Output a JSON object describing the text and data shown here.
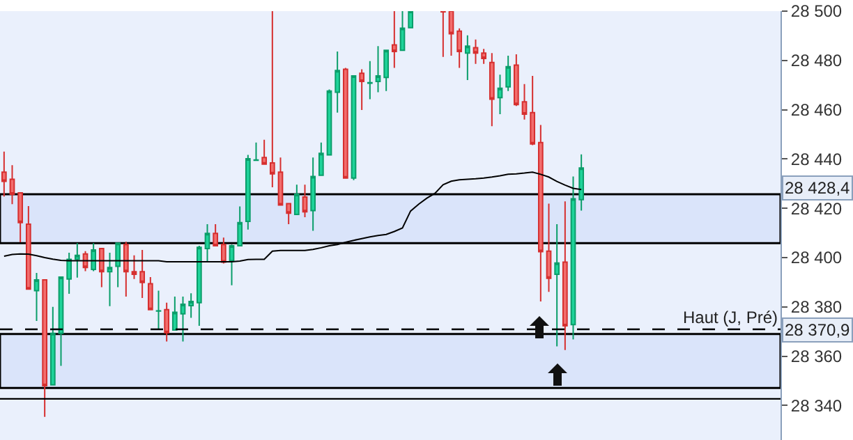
{
  "chart_data": {
    "type": "candlestick",
    "categories": [
      null,
      null,
      null,
      null,
      null,
      null,
      null,
      null,
      null,
      null,
      null,
      null,
      null,
      null,
      null,
      null,
      null,
      null,
      null,
      null,
      null,
      null,
      null,
      null,
      null,
      null,
      null,
      null,
      null,
      null,
      null,
      null,
      null,
      null,
      null,
      null,
      null,
      null,
      null,
      null,
      null,
      null,
      null,
      null,
      null,
      null,
      null,
      null,
      null,
      null,
      null,
      null,
      null,
      null,
      null,
      null,
      null,
      null,
      null,
      null,
      null,
      null,
      null,
      null,
      null,
      null,
      null,
      null,
      null,
      null,
      null,
      null,
      null,
      null,
      null,
      null,
      null,
      null,
      null,
      null,
      null,
      null,
      null,
      null,
      null,
      null,
      null,
      null,
      null,
      null,
      null,
      null,
      null,
      null,
      null,
      null
    ],
    "ohlc": [
      [
        28434.7,
        28443.0,
        28424.8,
        28430.9
      ],
      [
        28431.8,
        28437.5,
        28421.7,
        28425.7
      ],
      [
        28426.3,
        28426.3,
        28406.2,
        28414.2
      ],
      [
        28413.6,
        28420.9,
        28387.2,
        28387.2
      ],
      [
        28386.6,
        28393.8,
        28374.3,
        28391.0
      ],
      [
        28391.0,
        28391.0,
        28335.4,
        28348.0
      ],
      [
        28348.4,
        28380.0,
        28348.4,
        28369.3
      ],
      [
        28369.3,
        28392.1,
        28356.1,
        28392.1
      ],
      [
        28391.3,
        28402.0,
        28385.3,
        28399.3
      ],
      [
        28399.3,
        28405.9,
        28391.9,
        28400.9
      ],
      [
        28401.5,
        28402.6,
        28394.5,
        28396.0
      ],
      [
        28395.2,
        28405.9,
        28394.5,
        28403.1
      ],
      [
        28403.7,
        28403.7,
        28388.0,
        28394.3
      ],
      [
        28394.3,
        28402.0,
        28380.3,
        28396.0
      ],
      [
        28396.5,
        28405.9,
        28388.0,
        28405.9
      ],
      [
        28405.3,
        28406.4,
        28384.2,
        28394.3
      ],
      [
        28394.3,
        28400.9,
        28391.3,
        28393.2
      ],
      [
        28394.3,
        28403.1,
        28383.6,
        28389.9
      ],
      [
        28389.4,
        28392.1,
        28378.9,
        28378.9
      ],
      [
        28378.3,
        28386.6,
        28370.6,
        28378.4
      ],
      [
        28378.9,
        28381.7,
        28366.0,
        28369.5
      ],
      [
        28370.6,
        28384.2,
        28370.6,
        28377.8
      ],
      [
        28377.2,
        28384.2,
        28366.0,
        28381.1
      ],
      [
        28380.5,
        28385.5,
        28375.6,
        28382.2
      ],
      [
        28381.7,
        28404.8,
        28372.3,
        28404.2
      ],
      [
        28403.7,
        28413.6,
        28398.2,
        28409.8
      ],
      [
        28409.8,
        28413.6,
        28404.8,
        28404.8
      ],
      [
        28405.3,
        28408.1,
        28397.6,
        28398.2
      ],
      [
        28398.7,
        28405.3,
        28388.8,
        28404.8
      ],
      [
        28404.8,
        28420.8,
        28404.8,
        28414.2
      ],
      [
        28414.7,
        28441.7,
        28411.4,
        28440.1
      ],
      [
        28439.5,
        28446.7,
        28439.5,
        28439.6
      ],
      [
        28440.6,
        28447.8,
        28437.9,
        28437.9
      ],
      [
        28438.4,
        28500,
        28428.5,
        28434.0
      ],
      [
        28434.7,
        28440.6,
        28421.3,
        28421.3
      ],
      [
        28421.9,
        28421.9,
        28413.6,
        28418.0
      ],
      [
        28417.5,
        28429.6,
        28417.5,
        28425.7
      ],
      [
        28424.6,
        28429.6,
        28416.4,
        28418.6
      ],
      [
        28419.1,
        28440.6,
        28410.9,
        28432.9
      ],
      [
        28433.4,
        28446.7,
        28433.4,
        28442.3
      ],
      [
        28441.7,
        28468.2,
        28441.7,
        28467.6
      ],
      [
        28467.1,
        28483.6,
        28458.8,
        28475.9
      ],
      [
        28476.4,
        28477.0,
        28432.3,
        28432.3
      ],
      [
        28432.3,
        28473.7,
        28431.4,
        28473.7
      ],
      [
        28474.8,
        28476.4,
        28459.9,
        28471.5
      ],
      [
        28470.8,
        28479.7,
        28464.3,
        28471.0
      ],
      [
        28471.5,
        28485.8,
        28467.1,
        28473.7
      ],
      [
        28473.1,
        28484.1,
        28467.6,
        28484.1
      ],
      [
        28486.3,
        28500,
        28477.0,
        28483.6
      ],
      [
        28484.1,
        28500,
        28484.1,
        28493.1
      ],
      [
        28493.3,
        28500,
        28493.3,
        28500
      ],
      null,
      null,
      null,
      [
        28500,
        28500,
        28481.4,
        28499.7
      ],
      [
        28500,
        28500,
        28481.9,
        28490.8
      ],
      [
        28491.9,
        28493.0,
        28477.0,
        28483.6
      ],
      [
        28483.0,
        28490.2,
        28472.0,
        28485.8
      ],
      [
        28485.2,
        28488.5,
        28478.6,
        28483.0
      ],
      [
        28483.0,
        28484.7,
        28478.6,
        28480.8
      ],
      [
        28479.2,
        28483.0,
        28453.3,
        28464.3
      ],
      [
        28464.9,
        28474.2,
        28458.2,
        28468.7
      ],
      [
        28469.3,
        28481.9,
        28467.6,
        28477.5
      ],
      [
        28478.1,
        28482.5,
        28461.5,
        28462.1
      ],
      [
        28463.2,
        28470.4,
        28456.0,
        28458.2
      ],
      [
        28458.8,
        28473.7,
        28445.6,
        28446.1
      ],
      [
        28446.7,
        28453.8,
        28382.2,
        28402.4
      ],
      [
        28402.6,
        28421.9,
        28386.1,
        28391.6
      ],
      [
        28393.2,
        28413.6,
        28364.0,
        28397.8
      ],
      [
        28398.2,
        28422.8,
        28362.5,
        28372.3
      ],
      [
        28372.8,
        28432.9,
        28366.8,
        28423.9
      ],
      [
        28423.5,
        28441.9,
        28419.1,
        28436.4
      ],
      null,
      null,
      null,
      null,
      null,
      null,
      null,
      null,
      null,
      null,
      null,
      null,
      null,
      null,
      null,
      null,
      null,
      null,
      null,
      null,
      null,
      null,
      null,
      null
    ],
    "series": [
      {
        "type": "line",
        "color": "#000000",
        "values": [
          28400.6,
          28401.3,
          28401.5,
          28401.4,
          28400.8,
          28400.0,
          28399.4,
          28398.9,
          28398.7,
          28398.7,
          28398.7,
          28398.7,
          28398.7,
          28398.7,
          28398.7,
          28398.7,
          28398.7,
          28398.7,
          28398.7,
          28398.7,
          28398.3,
          28398.3,
          28398.3,
          28398.3,
          28398.3,
          28398.3,
          28398.3,
          28398.3,
          28398.3,
          28398.6,
          28399.2,
          28399.3,
          28399.3,
          28402.6,
          28402.9,
          28402.9,
          28402.9,
          28402.9,
          28403.3,
          28404.0,
          28404.8,
          28405.3,
          28406.2,
          28407.0,
          28407.7,
          28408.4,
          28409.0,
          28409.4,
          28410.6,
          28412.0,
          28418.9,
          28421.7,
          28424.1,
          28426.1,
          28429.6,
          28431.0,
          28431.6,
          28431.8,
          28432.0,
          28432.3,
          28432.7,
          28433.2,
          28433.8,
          28434.0,
          28434.3,
          28434.7,
          28433.8,
          28432.7,
          28430.9,
          28429.4,
          28428.1,
          28427.6,
          null,
          null,
          null,
          null,
          null,
          null,
          null,
          null,
          null,
          null,
          null,
          null,
          null,
          null,
          null,
          null,
          null,
          null,
          null,
          null,
          null,
          null,
          null,
          null
        ]
      }
    ],
    "ylim": [
      28326,
      28500
    ],
    "yticks": [
      {
        "value": 28340,
        "label": "28 340"
      },
      {
        "value": 28360,
        "label": "28 360"
      },
      {
        "value": 28380,
        "label": "28 380"
      },
      {
        "value": 28400,
        "label": "28 400"
      },
      {
        "value": 28420,
        "label": "28 420"
      },
      {
        "value": 28440,
        "label": "28 440"
      },
      {
        "value": 28460,
        "label": "28 460"
      },
      {
        "value": 28480,
        "label": "28 480"
      },
      {
        "value": 28500,
        "label": "28 500"
      }
    ],
    "bands": [
      {
        "axis": "y",
        "from": 28405.9,
        "to": 28425.7,
        "color": "#dae4fa"
      },
      {
        "axis": "y",
        "from": 28347.1,
        "to": 28369.0,
        "color": "#dae4fa"
      }
    ],
    "ref_lines": [
      {
        "axis": "y",
        "value": 28370.9,
        "label": "Haut (J, Pré)",
        "line_style": "dashed",
        "color": "#000000"
      },
      {
        "axis": "y",
        "value": 28342.7,
        "color": "#000000",
        "line_style": "solid"
      }
    ],
    "annotations": [
      "28 428,4",
      "28 370,9"
    ],
    "grid": false,
    "legend": false,
    "tick_labels": "y"
  }
}
